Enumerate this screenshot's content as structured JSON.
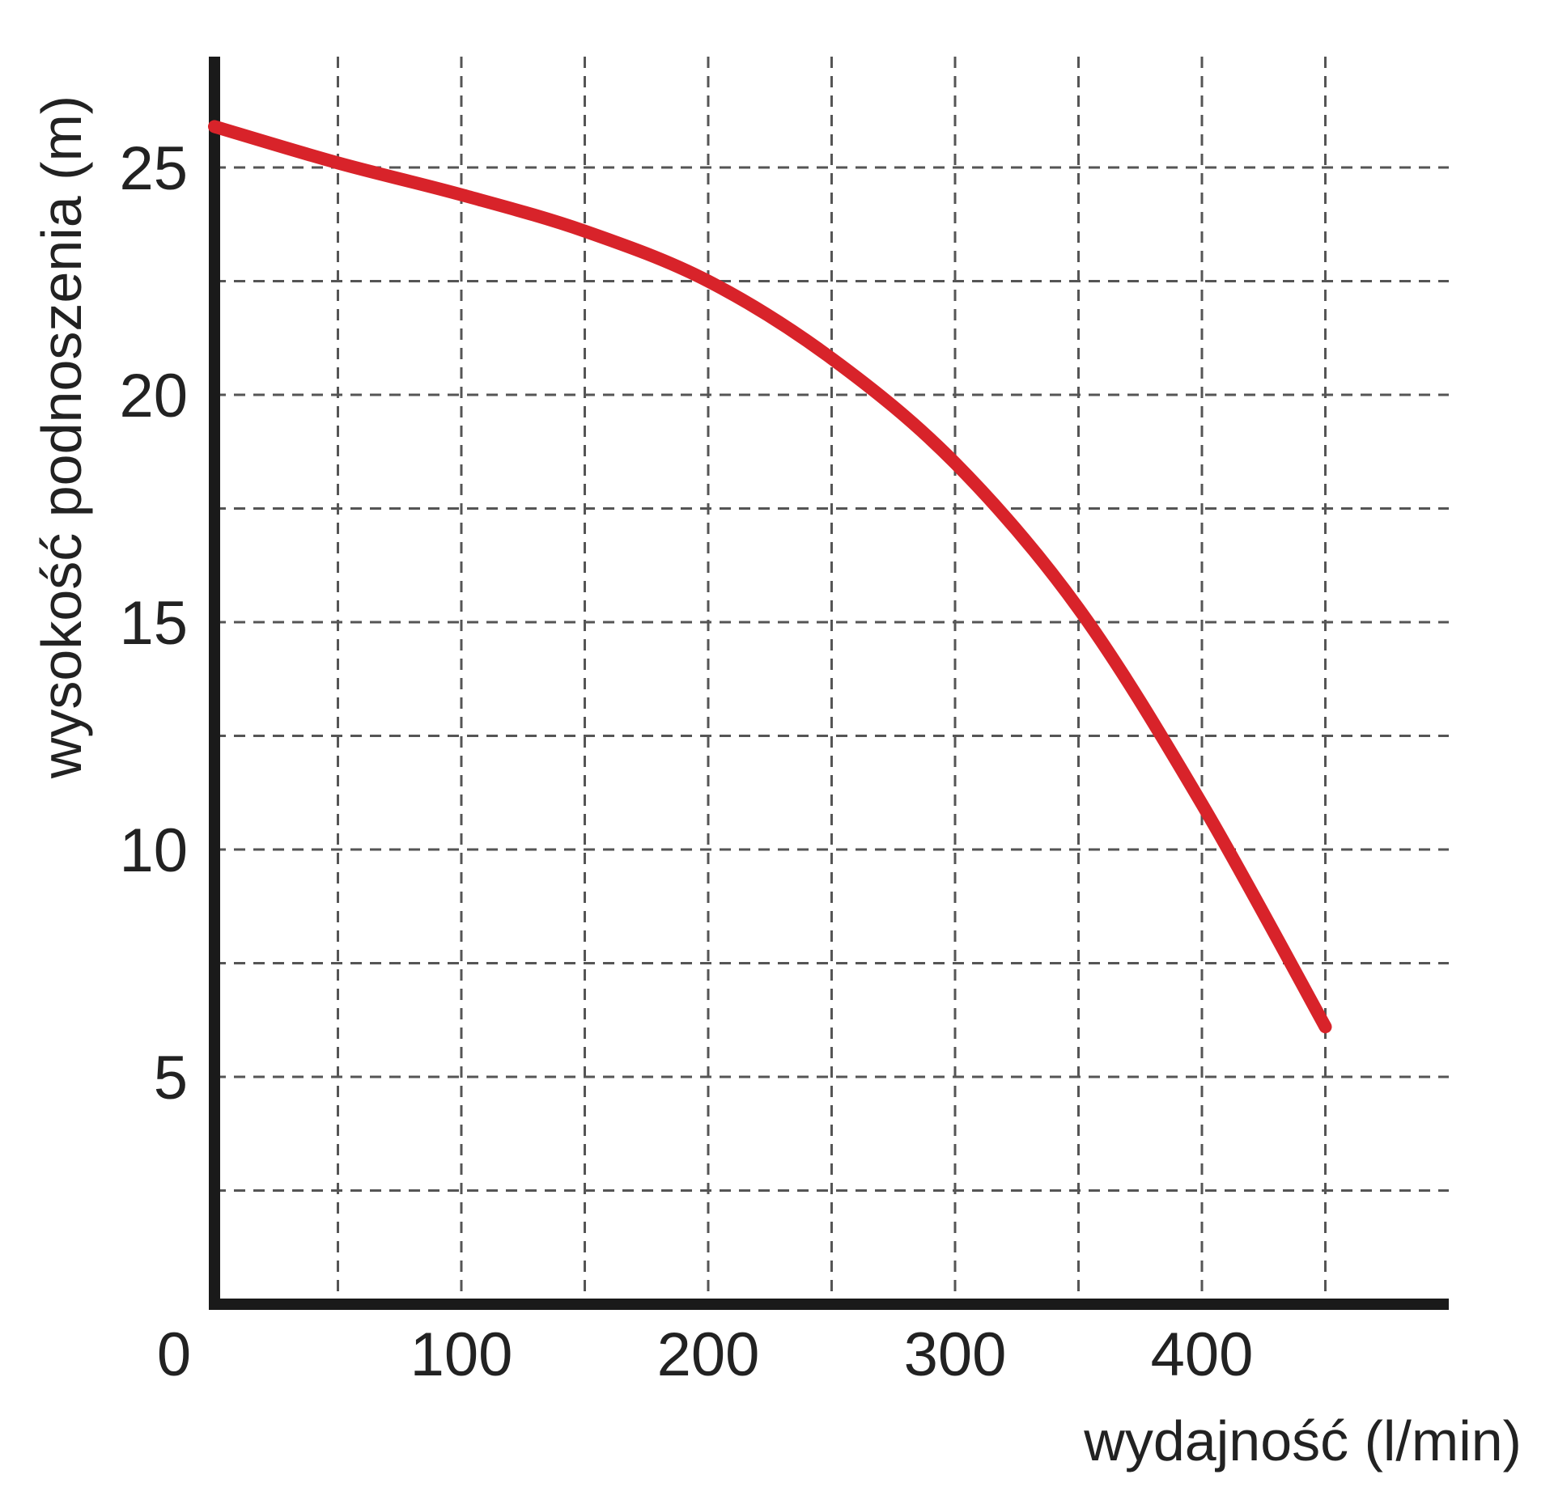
{
  "chart_data": {
    "type": "line",
    "title": "",
    "xlabel": "wydajność (l/min)",
    "ylabel": "wysokość podnoszenia (m)",
    "xlim": [
      0,
      500
    ],
    "ylim": [
      0,
      27
    ],
    "x_ticks": [
      0,
      100,
      200,
      300,
      400
    ],
    "y_ticks": [
      5,
      10,
      15,
      20,
      25
    ],
    "x_tick_labels": [
      "0",
      "100",
      "200",
      "300",
      "400"
    ],
    "y_tick_labels": [
      "5",
      "10",
      "15",
      "20",
      "25"
    ],
    "x_grid": [
      50,
      100,
      150,
      200,
      250,
      300,
      350,
      400,
      450
    ],
    "y_grid": [
      2.5,
      5,
      7.5,
      10,
      12.5,
      15,
      17.5,
      20,
      22.5,
      25
    ],
    "grid": true,
    "series": [
      {
        "color": "#d8232a",
        "x": [
          0,
          50,
          100,
          150,
          200,
          250,
          300,
          350,
          400,
          450
        ],
        "y": [
          25.9,
          25.1,
          24.4,
          23.6,
          22.5,
          20.8,
          18.5,
          15.3,
          11.0,
          6.1
        ]
      }
    ]
  }
}
